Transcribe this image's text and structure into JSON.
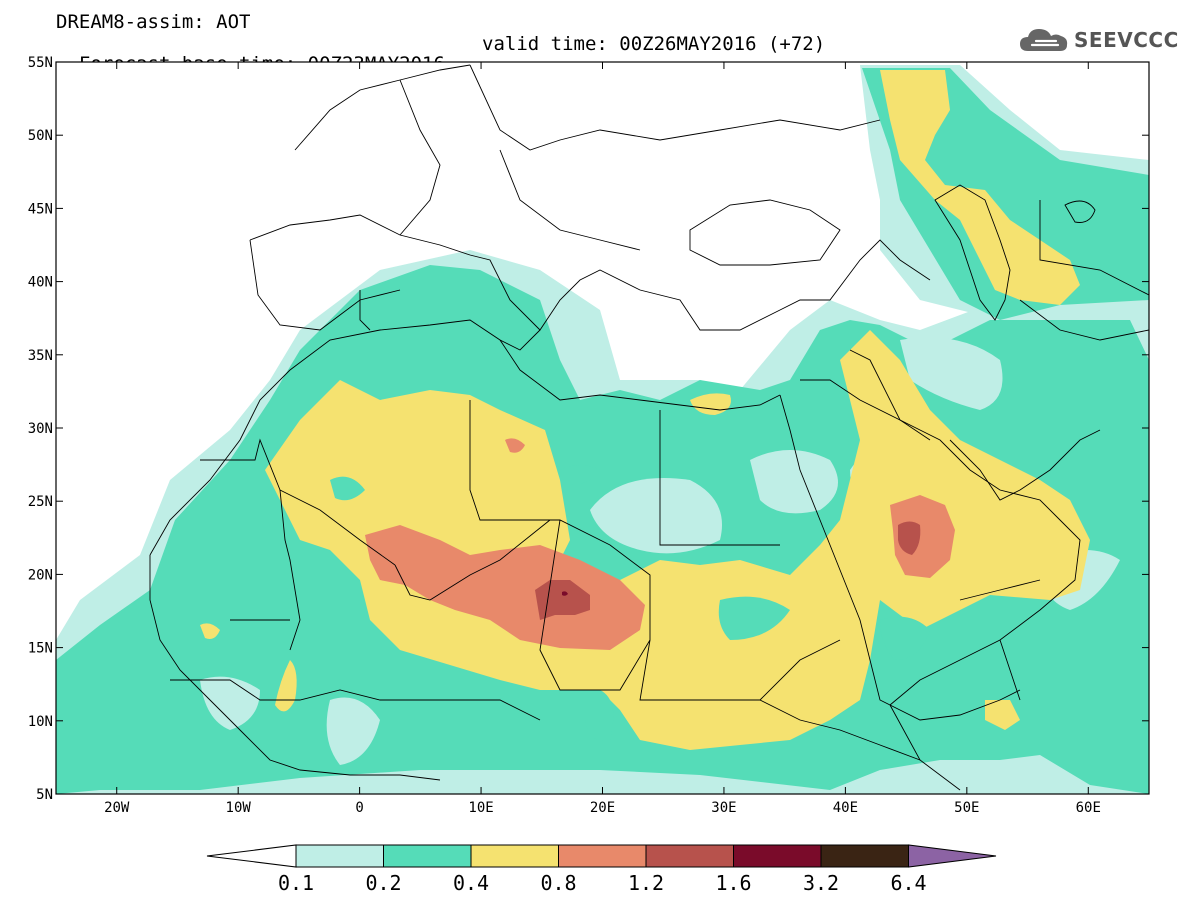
{
  "header": {
    "title": "DREAM8-assim: AOT",
    "base_time": "Forecast base time: 00Z23MAY2016",
    "valid_time": "valid time: 00Z26MAY2016 (+72)"
  },
  "logo": {
    "text": "SEEVCCC",
    "icon": "cloud-icon"
  },
  "map": {
    "projection": "cylindrical equidistant",
    "lon_range": [
      -25,
      65
    ],
    "lat_range": [
      5,
      55
    ],
    "lat_labels": [
      "5N",
      "10N",
      "15N",
      "20N",
      "25N",
      "30N",
      "35N",
      "40N",
      "45N",
      "50N",
      "55N"
    ],
    "lon_labels": [
      "20W",
      "10W",
      "0",
      "10E",
      "20E",
      "30E",
      "40E",
      "50E",
      "60E"
    ]
  },
  "colorbar": {
    "labels": [
      "0.1",
      "0.2",
      "0.4",
      "0.8",
      "1.2",
      "1.6",
      "3.2",
      "6.4"
    ],
    "colors": [
      "#ffffff",
      "#bfeee6",
      "#55dcb8",
      "#f5e270",
      "#e8896a",
      "#b7524c",
      "#7a0b2a",
      "#3a2414",
      "#8c63a4"
    ],
    "extend": "both"
  }
}
